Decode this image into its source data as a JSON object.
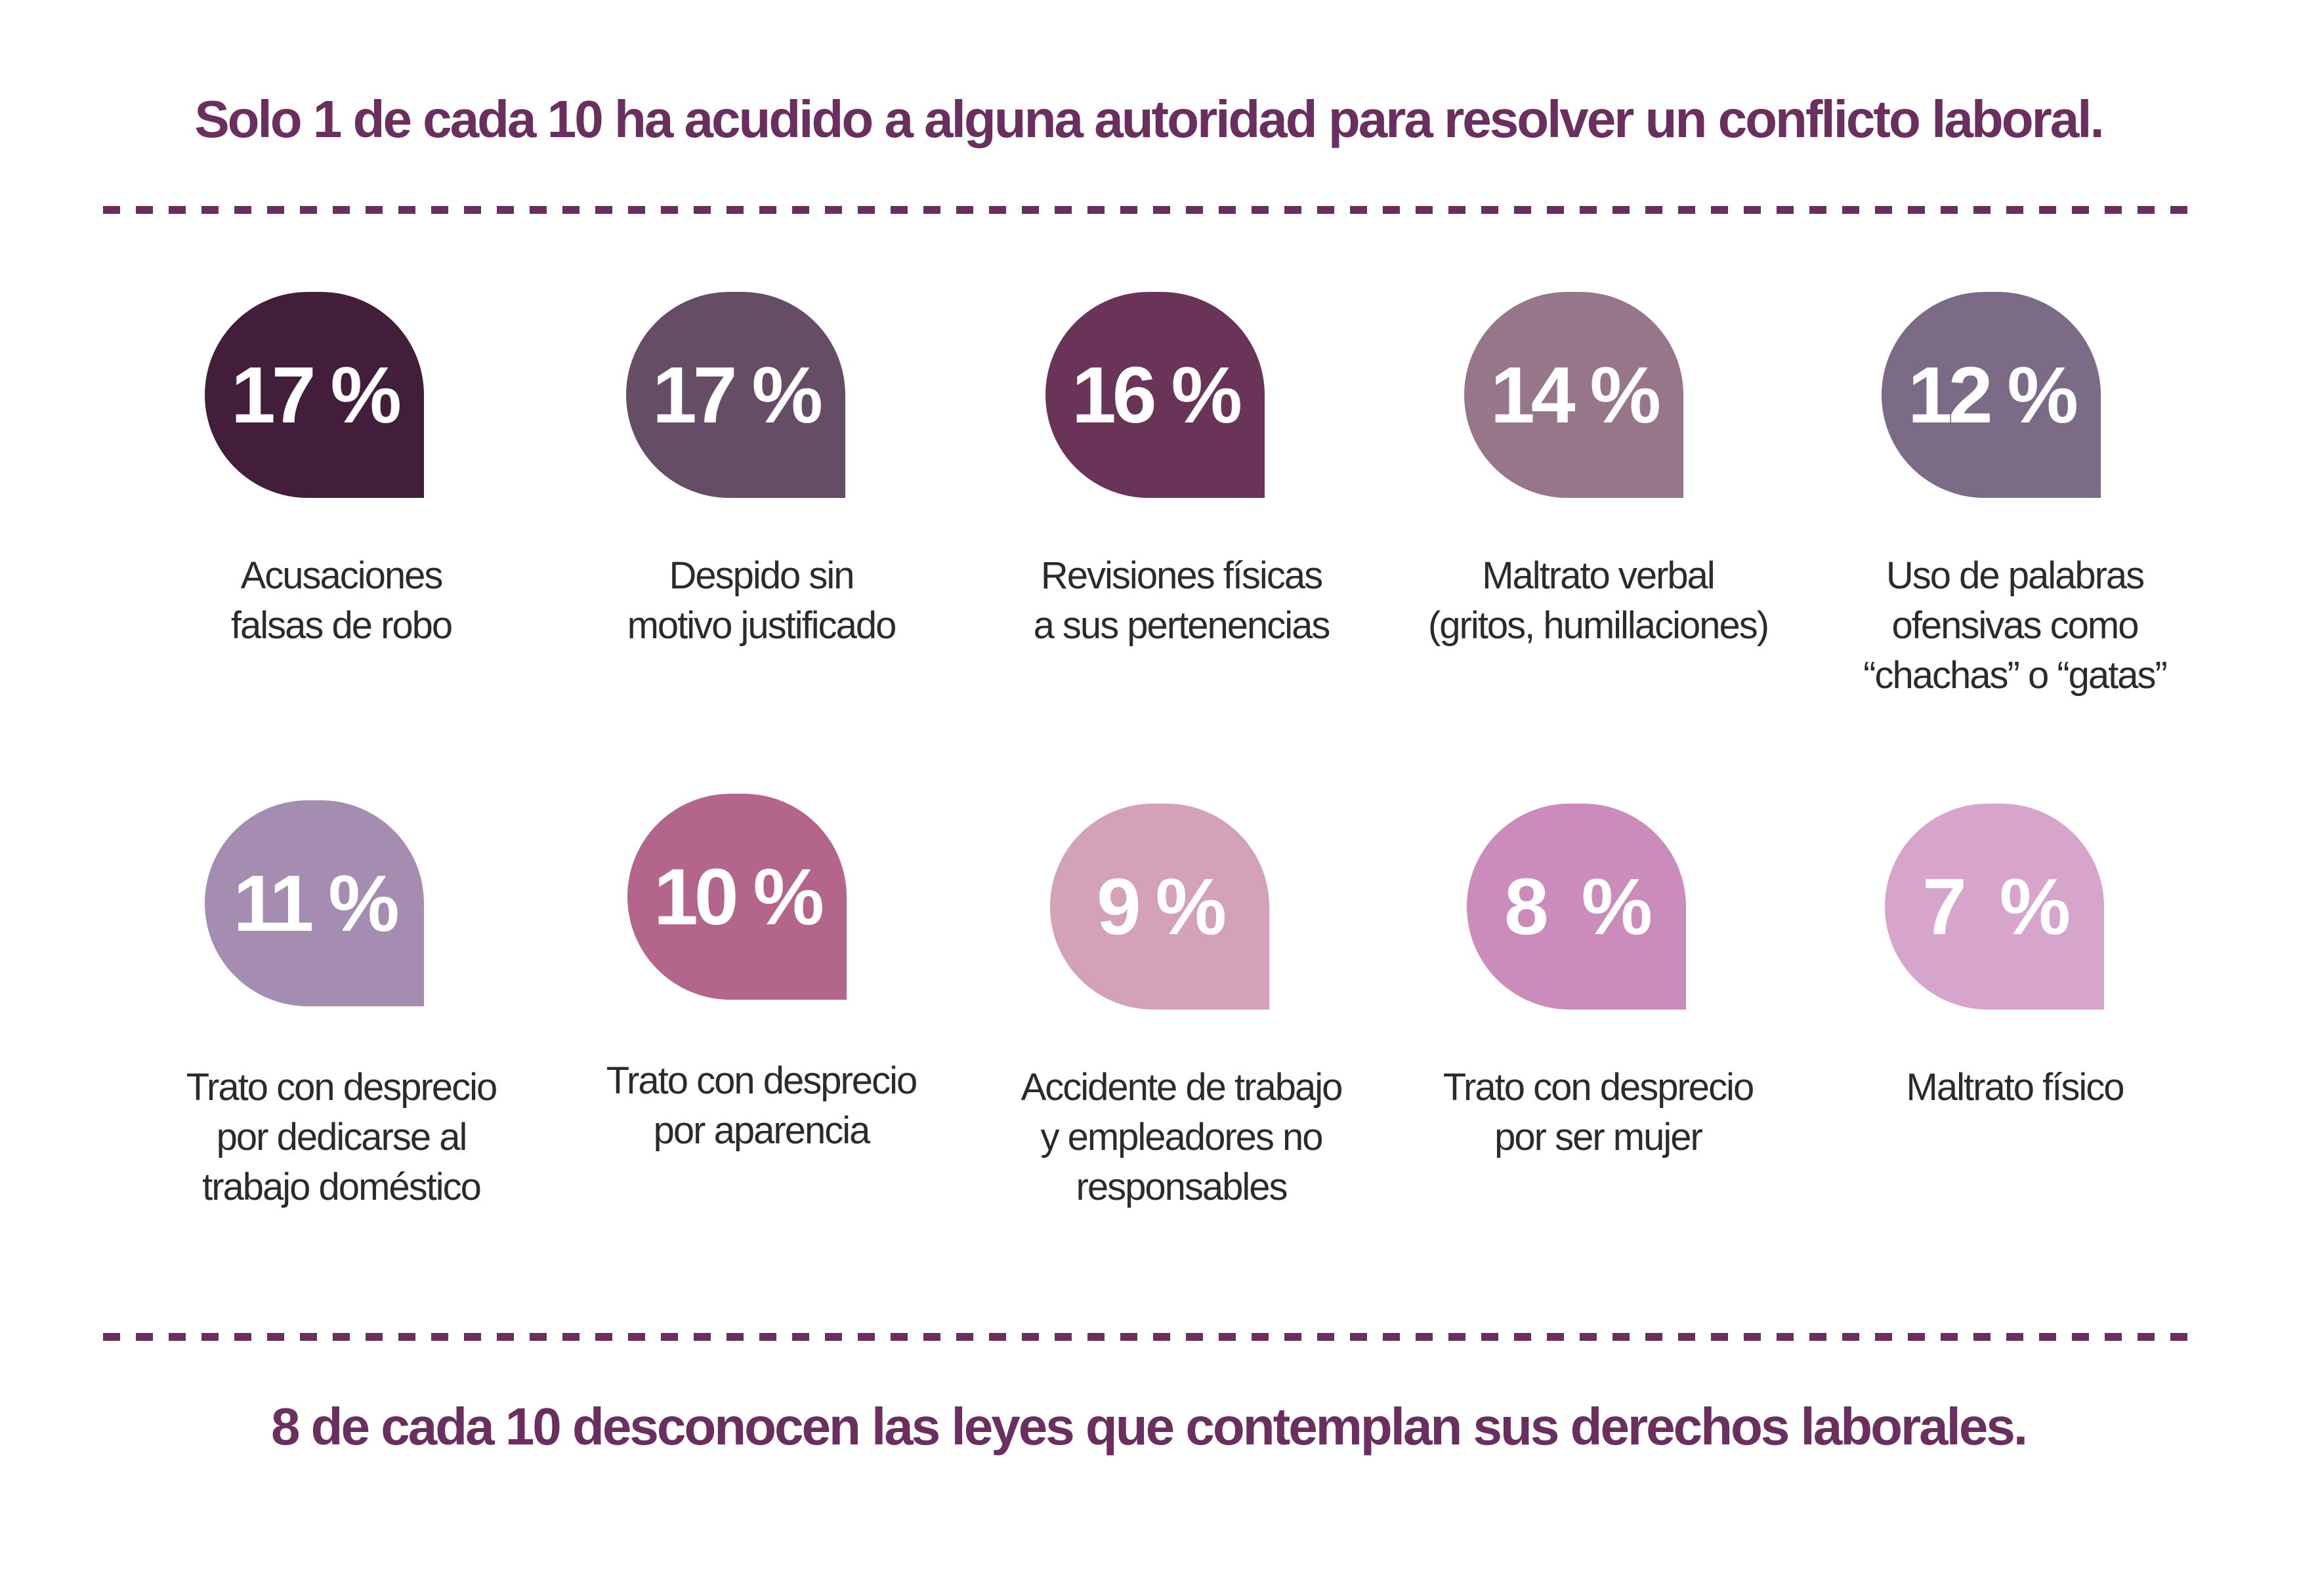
{
  "headline_top": "Solo 1 de cada 10 ha acudido a alguna autoridad para resolver un conflicto laboral.",
  "headline_bottom": "8 de cada 10 desconocen las leyes que contemplan sus derechos laborales.",
  "colors": {
    "title": "#6a2f5e",
    "text": "#2b2b2b"
  },
  "stats": [
    {
      "value": "17 %",
      "color": "#421e3b",
      "label_lines": [
        "Acusaciones",
        "falsas de robo"
      ]
    },
    {
      "value": "17 %",
      "color": "#654d65",
      "label_lines": [
        "Despido sin",
        "motivo justificado"
      ]
    },
    {
      "value": "16 %",
      "color": "#6a3458",
      "label_lines": [
        "Revisiones físicas",
        "a sus pertenencias"
      ]
    },
    {
      "value": "14 %",
      "color": "#97768a",
      "label_lines": [
        "Maltrato verbal",
        "(gritos, humillaciones)"
      ]
    },
    {
      "value": "12 %",
      "color": "#7c6b86",
      "label_lines": [
        "Uso de palabras",
        "ofensivas como",
        "“chachas” o “gatas”"
      ]
    },
    {
      "value": "11 %",
      "color": "#a48db1",
      "label_lines": [
        "Trato con desprecio",
        "por dedicarse al",
        "trabajo doméstico"
      ]
    },
    {
      "value": "10 %",
      "color": "#b3658c",
      "label_lines": [
        "Trato con desprecio",
        "por aparencia"
      ]
    },
    {
      "value": "9 %",
      "color": "#d3a2b9",
      "label_lines": [
        "Accidente de trabajo",
        "y empleadores no",
        "responsables"
      ]
    },
    {
      "value": "8  %",
      "color": "#cb8bbb",
      "label_lines": [
        "Trato con desprecio",
        "por ser mujer"
      ]
    },
    {
      "value": "7  %",
      "color": "#d7a5cc",
      "label_lines": [
        "Maltrato físico"
      ]
    }
  ]
}
